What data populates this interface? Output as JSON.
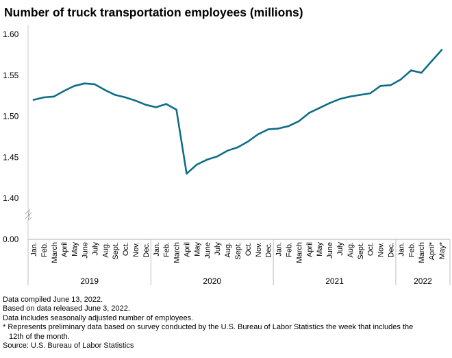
{
  "chart_data": {
    "type": "line",
    "title": "Number of truck transportation employees (millions)",
    "xlabel": "",
    "ylabel": "",
    "ylim": [
      1.4,
      1.6
    ],
    "y_break": true,
    "y_ticks": [
      "1.60",
      "1.55",
      "1.50",
      "1.45",
      "1.40",
      "0.00"
    ],
    "grid": false,
    "line_color": "#0e6e87",
    "years": [
      {
        "label": "2019",
        "months": [
          "Jan.",
          "Feb.",
          "March",
          "April",
          "May",
          "June",
          "July",
          "Aug.",
          "Sept.",
          "Oct.",
          "Nov.",
          "Dec."
        ]
      },
      {
        "label": "2020",
        "months": [
          "Jan.",
          "Feb.",
          "March",
          "April",
          "May",
          "June",
          "July",
          "Aug.",
          "Sept.",
          "Oct.",
          "Nov.",
          "Dec."
        ]
      },
      {
        "label": "2021",
        "months": [
          "Jan.",
          "Feb.",
          "March",
          "April",
          "May",
          "June",
          "July",
          "Aug.",
          "Sept.",
          "Oct.",
          "Nov.",
          "Dec."
        ]
      },
      {
        "label": "2022",
        "months": [
          "Jan.",
          "Feb.",
          "March",
          "April*",
          "May*"
        ]
      }
    ],
    "series": [
      {
        "name": "Truck transportation employees",
        "values": [
          1.52,
          1.523,
          1.524,
          1.531,
          1.537,
          1.54,
          1.539,
          1.532,
          1.526,
          1.523,
          1.519,
          1.514,
          1.511,
          1.515,
          1.508,
          1.43,
          1.441,
          1.447,
          1.451,
          1.458,
          1.462,
          1.469,
          1.478,
          1.484,
          1.485,
          1.488,
          1.494,
          1.504,
          1.51,
          1.516,
          1.521,
          1.524,
          1.526,
          1.528,
          1.537,
          1.538,
          1.545,
          1.556,
          1.553,
          1.567,
          1.581
        ]
      }
    ]
  },
  "notes": [
    "Data compiled June 13, 2022.",
    "Based on data released June 3, 2022.",
    "Data includes seasonally adjusted number of employees.",
    "* Represents preliminary data based on survey conducted by the U.S. Bureau of Labor Statistics the week that includes the",
    "12th of the month.",
    "Source: U.S. Bureau of Labor Statistics"
  ]
}
